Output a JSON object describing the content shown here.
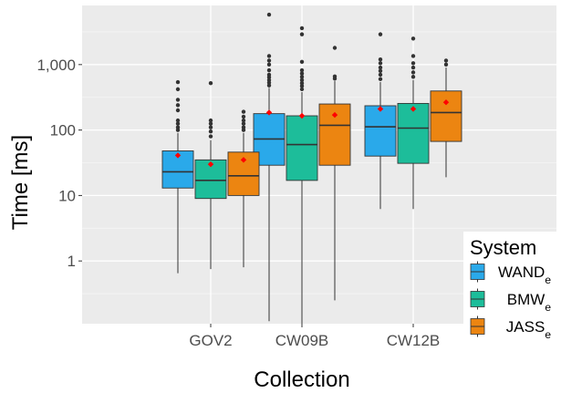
{
  "chart_data": {
    "type": "boxplot",
    "title": "",
    "xlabel": "Collection",
    "ylabel": "Time [ms]",
    "y_scale": "log10",
    "ylim": [
      0.11,
      8000
    ],
    "y_ticks": [
      {
        "value": 1,
        "label": "1"
      },
      {
        "value": 10,
        "label": "10"
      },
      {
        "value": 100,
        "label": "100"
      },
      {
        "value": 1000,
        "label": "1,000"
      }
    ],
    "categories": [
      "GOV2",
      "CW09B",
      "CW12B"
    ],
    "grid": true,
    "legend": {
      "title": "System",
      "position": "bottom-right"
    },
    "mean_marker_color": "#ff0000",
    "series": [
      {
        "name": "WAND",
        "subscript": "e",
        "color": "#2aa9ea",
        "boxes": [
          {
            "min": 0.65,
            "q1": 13,
            "median": 23,
            "q3": 48,
            "max": 90,
            "mean": 41,
            "outliers": [
              100,
              110,
              125,
              140,
              200,
              240,
              290,
              420,
              540
            ]
          },
          {
            "min": 0.12,
            "q1": 29,
            "median": 73,
            "q3": 178,
            "max": 440,
            "mean": 185,
            "outliers": [
              480,
              530,
              580,
              640,
              700,
              820,
              1000,
              1150,
              1350,
              5800
            ]
          },
          {
            "min": 6.2,
            "q1": 40,
            "median": 112,
            "q3": 235,
            "max": 540,
            "mean": 210,
            "outliers": [
              600,
              700,
              800,
              900,
              1050,
              1200,
              2900
            ]
          }
        ]
      },
      {
        "name": "BMW",
        "subscript": "e",
        "color": "#1dbd9a",
        "boxes": [
          {
            "min": 0.75,
            "q1": 9,
            "median": 17,
            "q3": 35,
            "max": 70,
            "mean": 30,
            "outliers": [
              80,
              95,
              110,
              125,
              140,
              520
            ]
          },
          {
            "min": 0.11,
            "q1": 17,
            "median": 60,
            "q3": 165,
            "max": 380,
            "mean": 165,
            "outliers": [
              420,
              470,
              520,
              580,
              650,
              730,
              820,
              1100,
              2900,
              3600
            ]
          },
          {
            "min": 6.2,
            "q1": 31,
            "median": 107,
            "q3": 255,
            "max": 580,
            "mean": 210,
            "outliers": [
              650,
              760,
              900,
              1050,
              1350,
              2500
            ]
          }
        ]
      },
      {
        "name": "JASS",
        "subscript": "e",
        "color": "#ec8511",
        "boxes": [
          {
            "min": 0.8,
            "q1": 10,
            "median": 20,
            "q3": 46,
            "max": 90,
            "mean": 35,
            "outliers": [
              100,
              110,
              125,
              140,
              160,
              190
            ]
          },
          {
            "min": 0.25,
            "q1": 29,
            "median": 118,
            "q3": 250,
            "max": 560,
            "mean": 170,
            "outliers": [
              610,
              660,
              1800
            ]
          },
          {
            "min": 19,
            "q1": 67,
            "median": 185,
            "q3": 395,
            "max": 900,
            "mean": 265,
            "outliers": [
              1000,
              1150
            ]
          }
        ]
      }
    ]
  }
}
